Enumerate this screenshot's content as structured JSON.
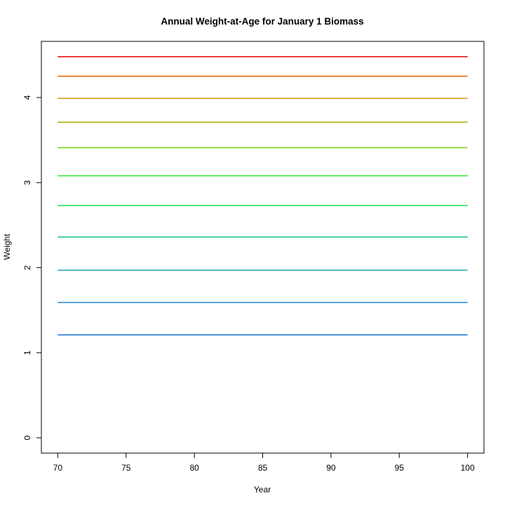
{
  "chart_data": {
    "type": "line",
    "title": "Annual Weight-at-Age for January 1 Biomass",
    "xlabel": "Year",
    "ylabel": "Weight",
    "xlim": [
      68.8,
      101.2
    ],
    "ylim": [
      -0.18,
      4.66
    ],
    "xticks": [
      70,
      75,
      80,
      85,
      90,
      95,
      100
    ],
    "yticks": [
      0,
      1,
      2,
      3,
      4
    ],
    "grid": false,
    "legend": "none",
    "x": [
      70,
      100
    ],
    "series": [
      {
        "values": [
          1.21,
          1.21
        ],
        "color": "#1f78d6"
      },
      {
        "values": [
          1.59,
          1.59
        ],
        "color": "#2a8fd0"
      },
      {
        "values": [
          1.97,
          1.97
        ],
        "color": "#27a6b8"
      },
      {
        "values": [
          2.36,
          2.36
        ],
        "color": "#22c98e"
      },
      {
        "values": [
          2.73,
          2.73
        ],
        "color": "#22e05a"
      },
      {
        "values": [
          3.08,
          3.08
        ],
        "color": "#2ee52a"
      },
      {
        "values": [
          3.41,
          3.41
        ],
        "color": "#7fd21a"
      },
      {
        "values": [
          3.71,
          3.71
        ],
        "color": "#b2b412"
      },
      {
        "values": [
          3.99,
          3.99
        ],
        "color": "#d9940c"
      },
      {
        "values": [
          4.25,
          4.25
        ],
        "color": "#e66a06"
      },
      {
        "values": [
          4.48,
          4.48
        ],
        "color": "#e8141e"
      }
    ]
  }
}
